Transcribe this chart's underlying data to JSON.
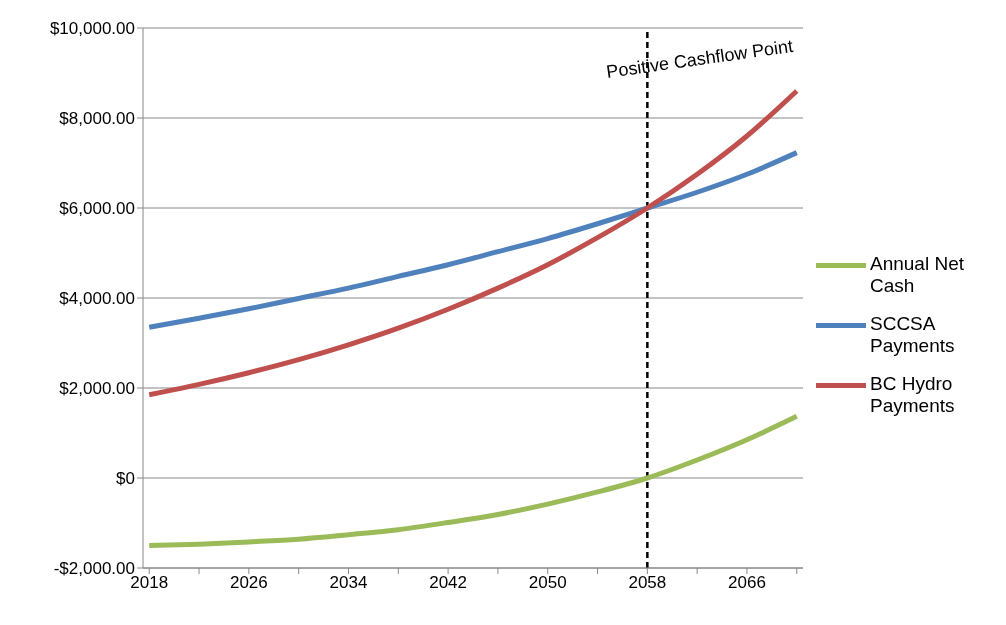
{
  "chart_data": {
    "type": "line",
    "x": [
      2018,
      2022,
      2026,
      2030,
      2034,
      2038,
      2042,
      2046,
      2050,
      2054,
      2058,
      2062,
      2066,
      2070
    ],
    "series": [
      {
        "name": "Annual Net Cash",
        "color": "#9bbb59",
        "values": [
          -1500,
          -1470,
          -1420,
          -1360,
          -1260,
          -1150,
          -990,
          -810,
          -580,
          -310,
          0,
          400,
          850,
          1370
        ]
      },
      {
        "name": "SCCSA Payments",
        "color": "#4f81bd",
        "values": [
          3350,
          3550,
          3760,
          3990,
          4220,
          4480,
          4740,
          5030,
          5320,
          5650,
          6000,
          6350,
          6750,
          7230
        ]
      },
      {
        "name": "BC Hydro Payments",
        "color": "#c0504d",
        "values": [
          1850,
          2080,
          2340,
          2630,
          2960,
          3330,
          3750,
          4220,
          4740,
          5340,
          6000,
          6750,
          7600,
          8600
        ]
      }
    ],
    "xlim": [
      2017.5,
      2070.5
    ],
    "xticks": [
      2018,
      {
        "value": 2022,
        "label": null
      },
      2026,
      {
        "value": 2030,
        "label": null
      },
      2034,
      {
        "value": 2038,
        "label": null
      },
      2042,
      {
        "value": 2046,
        "label": null
      },
      2050,
      {
        "value": 2054,
        "label": null
      },
      2058,
      {
        "value": 2062,
        "label": null
      },
      2066,
      {
        "value": 2070,
        "label": null
      }
    ],
    "ylim": [
      -2000,
      10000
    ],
    "yticks": [
      {
        "value": -2000,
        "label": "-$2,000.00"
      },
      {
        "value": 0,
        "label": "$0"
      },
      {
        "value": 2000,
        "label": "$2,000.00"
      },
      {
        "value": 4000,
        "label": "$4,000.00"
      },
      {
        "value": 6000,
        "label": "$6,000.00"
      },
      {
        "value": 8000,
        "label": "$8,000.00"
      },
      {
        "value": 10000,
        "label": "$10,000.00"
      }
    ],
    "ref_lines": [
      {
        "axis": "x",
        "value": 2058,
        "label": "Positive Cashflow Point",
        "color": "#000000",
        "line_style": "dashed"
      }
    ],
    "grid": "y",
    "legend": "right",
    "marker": "none",
    "line_style": "solid"
  }
}
